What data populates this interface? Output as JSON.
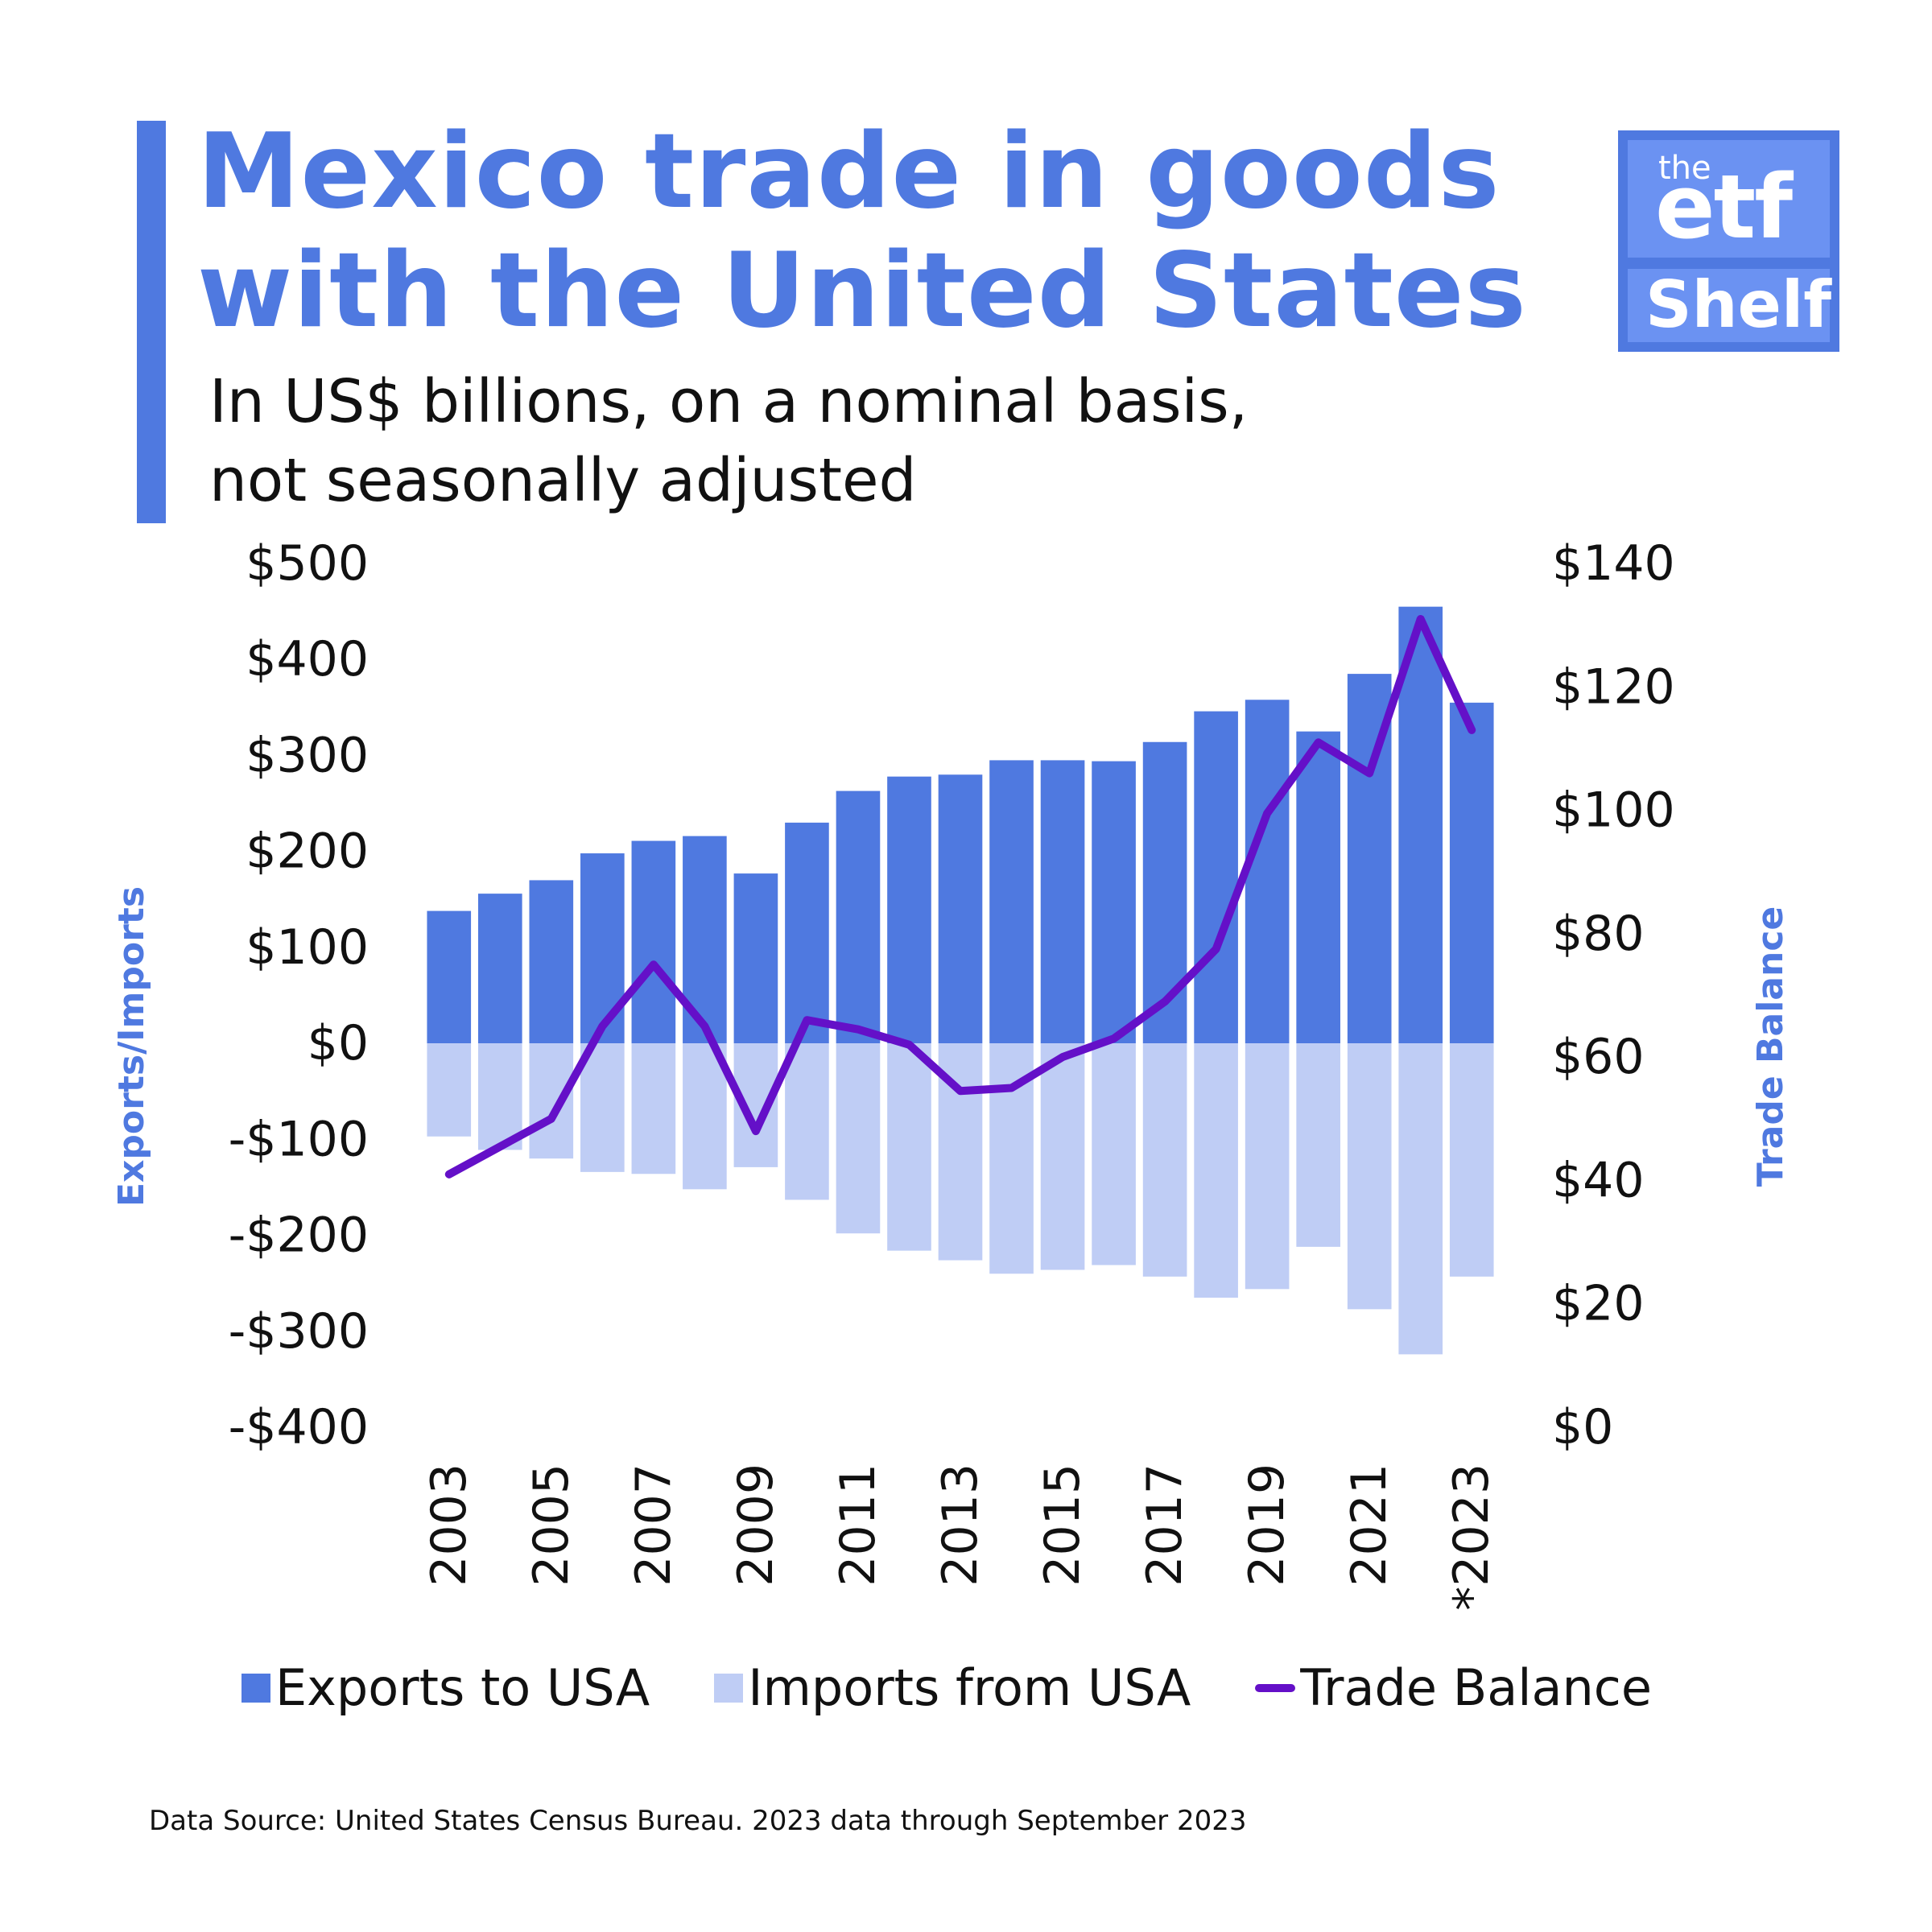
{
  "header": {
    "title_line1": "Mexico trade in goods",
    "title_line2": "with the United States",
    "subtitle_line1": "In US$ billions, on a nominal basis,",
    "subtitle_line2": "not seasonally adjusted"
  },
  "logo": {
    "the": "the",
    "etf": "etf",
    "shelf": "Shelf"
  },
  "colors": {
    "accent": "#4f79e0",
    "exports": "#4f79e0",
    "imports": "#bfcdf5",
    "balance": "#6410c8",
    "logo_light": "#6b92f2"
  },
  "chart_data": {
    "type": "bar",
    "title": "Mexico trade in goods with the United States",
    "subtitle": "In US$ billions, on a nominal basis, not seasonally adjusted",
    "categories": [
      "2003",
      "2004",
      "2005",
      "2006",
      "2007",
      "2008",
      "2009",
      "2010",
      "2011",
      "2012",
      "2013",
      "2014",
      "2015",
      "2016",
      "2017",
      "2018",
      "2019",
      "2020",
      "2021",
      "2022",
      "*2023"
    ],
    "x_tick_labels": [
      "2003",
      "2005",
      "2007",
      "2009",
      "2011",
      "2013",
      "2015",
      "2017",
      "2019",
      "2021",
      "*2023"
    ],
    "series": [
      {
        "name": "Exports to USA",
        "type": "bar",
        "axis": "left",
        "values": [
          138,
          156,
          170,
          198,
          211,
          216,
          177,
          230,
          263,
          278,
          280,
          295,
          295,
          294,
          314,
          346,
          358,
          325,
          385,
          455,
          355
        ]
      },
      {
        "name": "Imports from USA",
        "type": "bar",
        "axis": "left",
        "values": [
          -97,
          -111,
          -120,
          -134,
          -136,
          -152,
          -129,
          -163,
          -198,
          -216,
          -226,
          -240,
          -236,
          -231,
          -243,
          -265,
          -256,
          -212,
          -277,
          -324,
          -243
        ]
      },
      {
        "name": "Trade Balance",
        "type": "line",
        "axis": "right",
        "values": [
          41,
          45.5,
          50,
          65,
          75,
          65,
          48,
          66,
          64.5,
          62,
          54.5,
          55,
          60,
          63,
          69,
          77.5,
          99.5,
          111,
          106,
          131,
          113
        ]
      }
    ],
    "ylabel_left": "Exports/Imports",
    "ylabel_right": "Trade Balance",
    "ylim_left": [
      -400,
      500
    ],
    "ylim_right": [
      0,
      140
    ],
    "yticks_left": [
      {
        "v": 500,
        "label": "$500"
      },
      {
        "v": 400,
        "label": "$400"
      },
      {
        "v": 300,
        "label": "$300"
      },
      {
        "v": 200,
        "label": "$200"
      },
      {
        "v": 100,
        "label": "$100"
      },
      {
        "v": 0,
        "label": "$0"
      },
      {
        "v": -100,
        "label": "-$100"
      },
      {
        "v": -200,
        "label": "-$200"
      },
      {
        "v": -300,
        "label": "-$300"
      },
      {
        "v": -400,
        "label": "-$400"
      }
    ],
    "yticks_right": [
      {
        "v": 140,
        "label": "$140"
      },
      {
        "v": 120,
        "label": "$120"
      },
      {
        "v": 100,
        "label": "$100"
      },
      {
        "v": 80,
        "label": "$80"
      },
      {
        "v": 60,
        "label": "$60"
      },
      {
        "v": 40,
        "label": "$40"
      },
      {
        "v": 20,
        "label": "$20"
      },
      {
        "v": 0,
        "label": "$0"
      }
    ],
    "grid": false,
    "legend_position": "bottom"
  },
  "legend": {
    "exports": "Exports to USA",
    "imports": "Imports from USA",
    "balance": "Trade Balance"
  },
  "footer": {
    "source": "Data Source: United States Census Bureau. 2023 data through September 2023"
  }
}
